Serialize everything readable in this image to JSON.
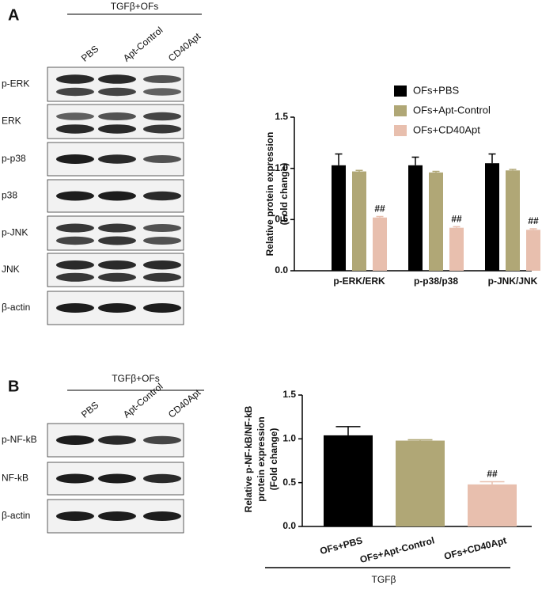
{
  "panels": [
    {
      "letter": "A",
      "header": "TGFβ+OFs",
      "lanes": [
        "PBS",
        "Apt-Control",
        "CD40Apt"
      ],
      "rows": [
        "p-ERK",
        "ERK",
        "p-p38",
        "p38",
        "p-JNK",
        "JNK",
        "β-actin"
      ]
    },
    {
      "letter": "B",
      "header": "TGFβ+OFs",
      "lanes": [
        "PBS",
        "Apt-Control",
        "CD40Apt"
      ],
      "rows": [
        "p-NF-kB",
        "NF-kB",
        "β-actin"
      ]
    }
  ],
  "chart_data": [
    {
      "type": "grouped-bar",
      "ylabel": [
        "Relative  protein expression",
        "(Fold change)"
      ],
      "categories": [
        "p-ERK/ERK",
        "p-p38/p38",
        "p-JNK/JNK"
      ],
      "series": [
        {
          "name": "OFs+PBS",
          "color": "#000000",
          "values": [
            1.03,
            1.03,
            1.05
          ],
          "errors": [
            0.11,
            0.08,
            0.09
          ]
        },
        {
          "name": "OFs+Apt-Control",
          "color": "#b0a776",
          "values": [
            0.97,
            0.96,
            0.98
          ],
          "errors": [
            0.01,
            0.01,
            0.01
          ]
        },
        {
          "name": "OFs+CD40Apt",
          "color": "#e8bfae",
          "values": [
            0.52,
            0.42,
            0.4
          ],
          "errors": [
            0.01,
            0.01,
            0.01
          ],
          "annotations": [
            "##",
            "##",
            "##"
          ]
        }
      ],
      "ylim": [
        0,
        1.5
      ],
      "yticks": [
        {
          "value": 0,
          "label": "0.0"
        },
        0.5,
        {
          "value": 1,
          "label": "1.0"
        },
        1.5
      ],
      "legend": "top-left"
    },
    {
      "type": "bar",
      "ylabel": [
        "Relative p-NF-kB/NF-kB",
        "protein expression",
        "(Fold change)"
      ],
      "xlabel": "TGFβ",
      "categories": [
        "OFs+PBS",
        "OFs+Apt-Control",
        "OFs+CD40Apt"
      ],
      "values": [
        1.04,
        0.98,
        0.48
      ],
      "errors": [
        0.1,
        0.01,
        0.03
      ],
      "colors": [
        "#000000",
        "#b0a776",
        "#e8bfae"
      ],
      "annotations": [
        null,
        null,
        "##"
      ],
      "ylim": [
        0,
        1.5
      ],
      "yticks": [
        {
          "value": 0,
          "label": "0.0"
        },
        0.5,
        {
          "value": 1,
          "label": "1.0"
        },
        1.5
      ]
    }
  ]
}
